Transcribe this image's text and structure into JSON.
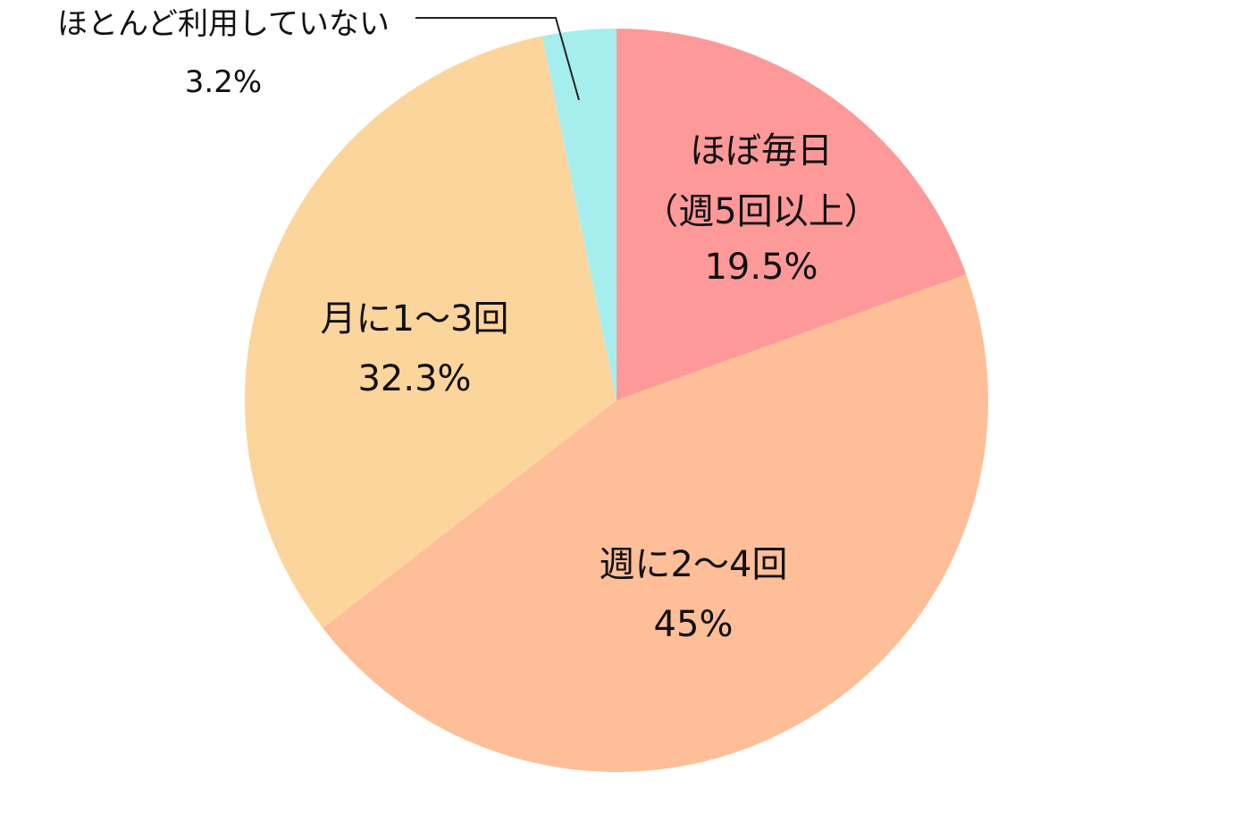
{
  "chart_data": {
    "type": "pie",
    "start": "top",
    "direction": "clockwise",
    "slices": [
      {
        "lines": [
          "ほぼ毎日",
          "（週5回以上）"
        ],
        "value": 19.5,
        "value_label": "19.5%",
        "color": "#FE9999"
      },
      {
        "lines": [
          "週に2〜4回"
        ],
        "value": 45,
        "value_label": "45%",
        "color": "#FEBE98"
      },
      {
        "lines": [
          "月に1〜3回"
        ],
        "value": 32.3,
        "value_label": "32.3%",
        "color": "#FCD59C"
      },
      {
        "lines": [
          "ほとんど利用していない"
        ],
        "value": 3.2,
        "value_label": "3.2%",
        "color": "#A6EEEE"
      }
    ]
  }
}
